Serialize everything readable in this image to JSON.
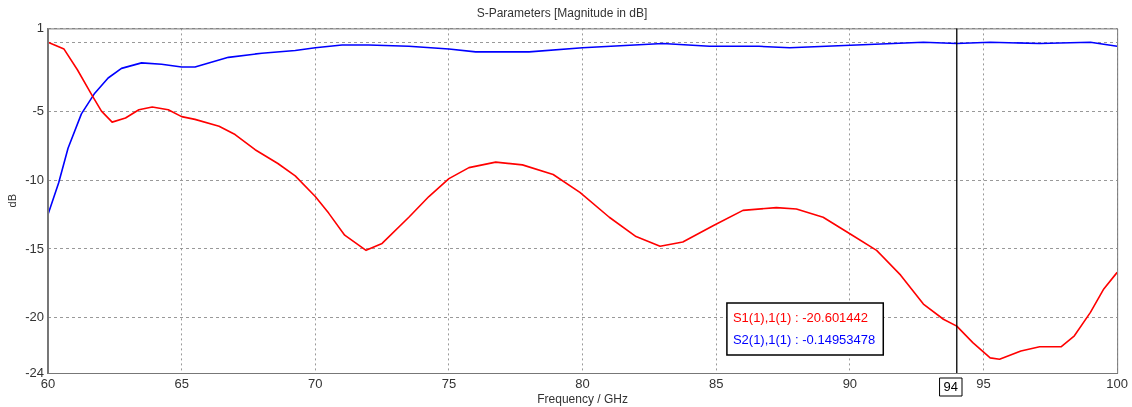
{
  "chart_data": {
    "type": "line",
    "title": "S-Parameters [Magnitude in dB]",
    "xlabel": "Frequency / GHz",
    "ylabel": "dB",
    "xlim": [
      60,
      100
    ],
    "xticks": [
      60,
      65,
      70,
      75,
      80,
      85,
      90,
      95,
      100
    ],
    "ylim": [
      -24,
      1
    ],
    "yticks": [
      1,
      {
        "value": 0,
        "label": null
      },
      -5,
      -10,
      -15,
      -20,
      -24
    ],
    "grid": true,
    "legend": false,
    "marker": "none",
    "line_style": "solid",
    "series": [
      {
        "color": "#ff0000",
        "x": [
          60,
          60.6,
          61.1,
          61.6,
          62.0,
          62.4,
          62.9,
          63.4,
          63.9,
          64.5,
          65,
          65.5,
          66.4,
          67,
          67.75,
          68.6,
          69.25,
          70,
          70.5,
          71.1,
          71.9,
          72.5,
          73.5,
          74.25,
          75,
          75.75,
          76.75,
          77.75,
          78.9,
          79.9,
          81,
          82,
          82.9,
          83.75,
          84.9,
          86,
          87.25,
          88,
          89,
          90,
          91,
          91.9,
          92.75,
          93.5,
          94.0,
          94.6,
          95.25,
          95.6,
          96.4,
          97.1,
          97.9,
          98.4,
          99,
          99.5,
          100
        ],
        "values": [
          0.0,
          -0.5,
          -2.0,
          -3.7,
          -5.0,
          -5.8,
          -5.5,
          -4.9,
          -4.7,
          -4.9,
          -5.4,
          -5.6,
          -6.1,
          -6.7,
          -7.8,
          -8.8,
          -9.7,
          -11.2,
          -12.4,
          -14.0,
          -15.1,
          -14.6,
          -12.7,
          -11.2,
          -9.9,
          -9.1,
          -8.7,
          -8.9,
          -9.6,
          -10.9,
          -12.7,
          -14.1,
          -14.8,
          -14.5,
          -13.3,
          -12.2,
          -12.0,
          -12.1,
          -12.7,
          -13.9,
          -15.1,
          -16.9,
          -19.0,
          -20.1,
          -20.6,
          -21.8,
          -22.9,
          -23.0,
          -22.4,
          -22.1,
          -22.1,
          -21.3,
          -19.6,
          -17.9,
          -16.7
        ]
      },
      {
        "color": "#0000ff",
        "x": [
          60,
          60.4,
          60.75,
          61.25,
          61.75,
          62.25,
          62.75,
          63.5,
          64.25,
          65,
          65.5,
          66.75,
          68,
          69.25,
          70,
          71,
          72,
          73.5,
          75,
          76,
          78,
          80,
          83,
          84.75,
          86.6,
          87.75,
          90.25,
          92.75,
          94,
          95.25,
          97.1,
          99,
          100
        ],
        "values": [
          -12.5,
          -10.2,
          -7.7,
          -5.2,
          -3.7,
          -2.6,
          -1.9,
          -1.5,
          -1.6,
          -1.8,
          -1.8,
          -1.1,
          -0.8,
          -0.6,
          -0.4,
          -0.2,
          -0.2,
          -0.3,
          -0.5,
          -0.7,
          -0.7,
          -0.4,
          -0.1,
          -0.3,
          -0.3,
          -0.4,
          -0.2,
          0.0,
          -0.1,
          0.0,
          -0.1,
          0.0,
          -0.3
        ]
      }
    ],
    "ref_lines": [
      {
        "axis": "x",
        "value": 94,
        "label": "94",
        "color": "#000000"
      }
    ],
    "annotations": [
      "S1(1),1(1) : -20.601442",
      "S2(1),1(1) : -0.14953478"
    ]
  }
}
